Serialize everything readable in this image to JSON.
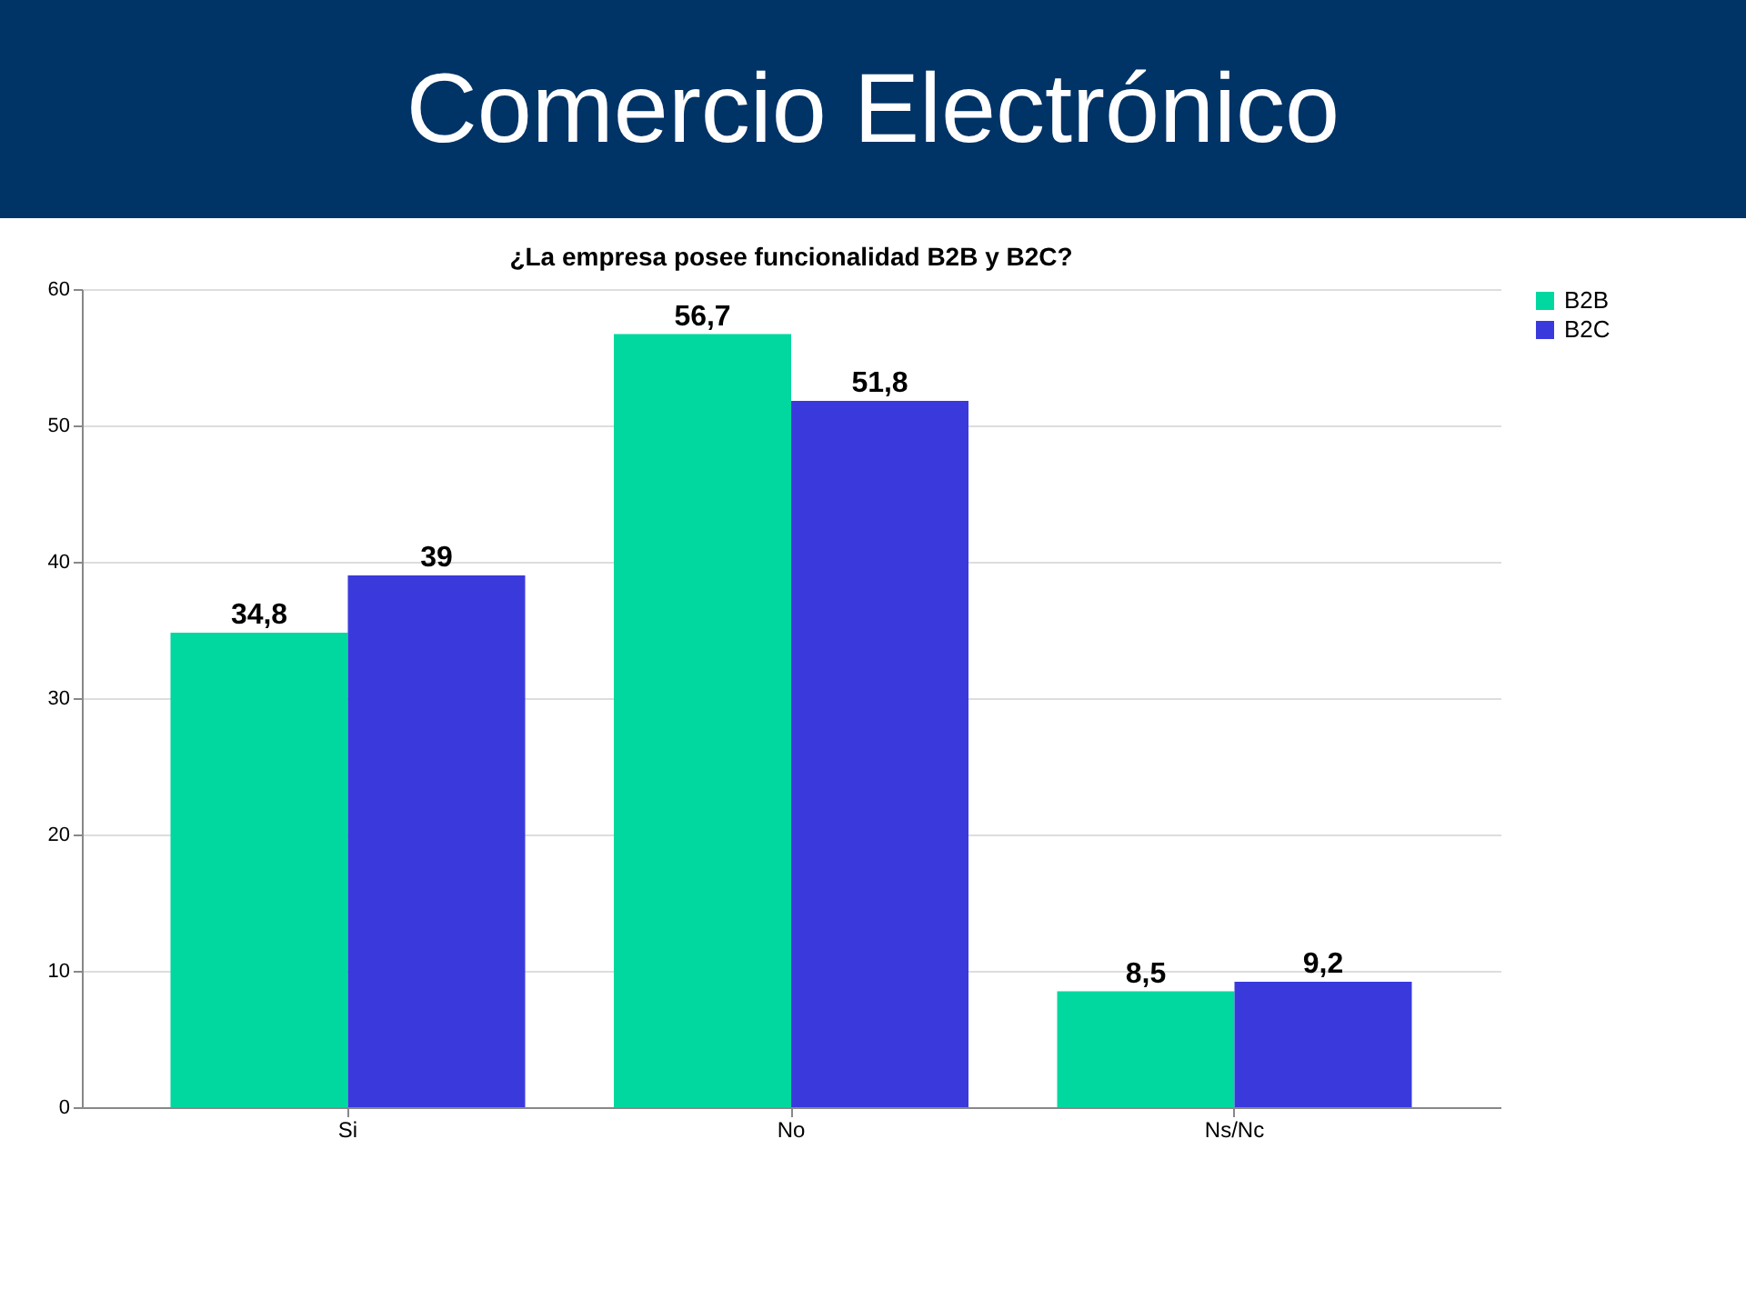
{
  "chart_data": {
    "type": "bar",
    "title": "Comercio Electrónico",
    "subtitle": "¿La empresa posee funcionalidad B2B y B2C?",
    "categories": [
      "Si",
      "No",
      "Ns/Nc"
    ],
    "series": [
      {
        "name": "B2B",
        "color": "#00d8a0",
        "values": [
          34.8,
          56.7,
          8.5
        ],
        "value_labels": [
          "34,8",
          "56,7",
          "8,5"
        ]
      },
      {
        "name": "B2C",
        "color": "#3a3adc",
        "values": [
          39,
          51.8,
          9.2
        ],
        "value_labels": [
          "39",
          "51,8",
          "9,2"
        ]
      }
    ],
    "ylim": [
      0,
      60
    ],
    "yticks": [
      0,
      10,
      20,
      30,
      40,
      50,
      60
    ],
    "grid": "y",
    "legend": "right"
  }
}
